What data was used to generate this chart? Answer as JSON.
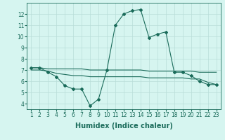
{
  "xlabel": "Humidex (Indice chaleur)",
  "x_values": [
    1,
    2,
    3,
    4,
    5,
    6,
    7,
    8,
    9,
    10,
    11,
    12,
    13,
    14,
    15,
    16,
    17,
    18,
    19,
    20,
    21,
    22,
    23
  ],
  "line1_y": [
    7.2,
    7.2,
    6.8,
    6.4,
    5.6,
    5.3,
    5.3,
    3.8,
    4.4,
    7.0,
    11.0,
    12.0,
    12.3,
    12.4,
    9.9,
    10.2,
    10.4,
    6.8,
    6.8,
    6.5,
    6.0,
    5.7,
    5.7
  ],
  "line2_y": [
    7.0,
    7.0,
    6.9,
    6.7,
    6.6,
    6.5,
    6.5,
    6.4,
    6.4,
    6.4,
    6.4,
    6.4,
    6.4,
    6.4,
    6.3,
    6.3,
    6.3,
    6.3,
    6.3,
    6.2,
    6.2,
    5.9,
    5.7
  ],
  "line3_y": [
    7.2,
    7.2,
    7.1,
    7.1,
    7.1,
    7.1,
    7.1,
    7.0,
    7.0,
    7.0,
    7.0,
    7.0,
    7.0,
    7.0,
    6.9,
    6.9,
    6.9,
    6.9,
    6.9,
    6.9,
    6.8,
    6.8,
    6.8
  ],
  "line_color": "#1a6b5a",
  "bg_color": "#d6f5f0",
  "grid_color": "#b8ddd8",
  "ylim_min": 3.5,
  "ylim_max": 13.0,
  "yticks": [
    4,
    5,
    6,
    7,
    8,
    9,
    10,
    11,
    12
  ],
  "xlim_min": 0.5,
  "xlim_max": 23.5,
  "tick_fontsize": 5.5,
  "xlabel_fontsize": 7
}
